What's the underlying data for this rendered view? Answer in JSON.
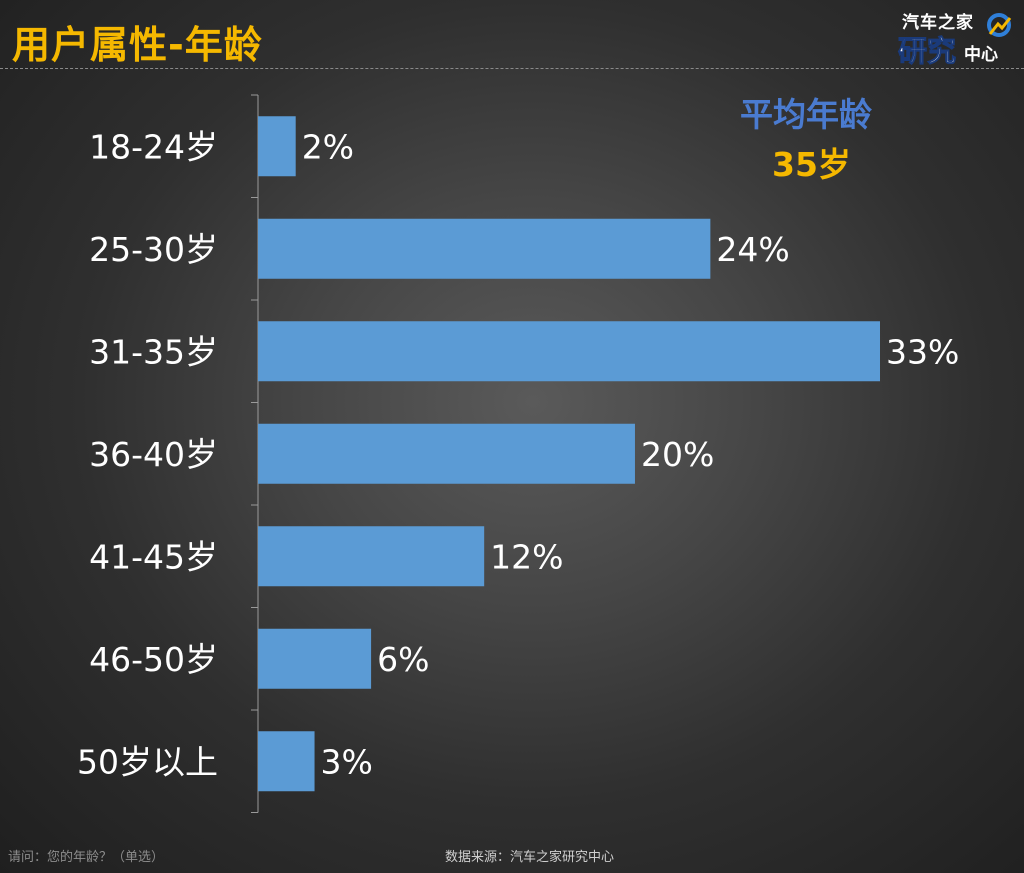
{
  "header": {
    "title": "用户属性-年龄"
  },
  "logo": {
    "top_text": "汽车之家",
    "main_text": "研究",
    "sub_text": "中心"
  },
  "summary": {
    "label": "平均年龄",
    "value": "35岁"
  },
  "footer": {
    "question": "请问：您的年龄？（单选）",
    "source": "数据来源：汽车之家研究中心"
  },
  "colors": {
    "bar": "#5b9bd5",
    "title": "#f5b800",
    "summary_label": "#4a7bd0",
    "summary_value": "#f5b800"
  },
  "chart_data": {
    "type": "bar",
    "orientation": "horizontal",
    "categories": [
      "18-24岁",
      "25-30岁",
      "31-35岁",
      "36-40岁",
      "41-45岁",
      "46-50岁",
      "50岁以上"
    ],
    "values": [
      2,
      24,
      33,
      20,
      12,
      6,
      3
    ],
    "data_labels": [
      "2%",
      "24%",
      "33%",
      "20%",
      "12%",
      "6%",
      "3%"
    ],
    "unit": "%",
    "xlim": [
      0,
      33
    ],
    "grid": false,
    "legend": "none",
    "title": ""
  }
}
